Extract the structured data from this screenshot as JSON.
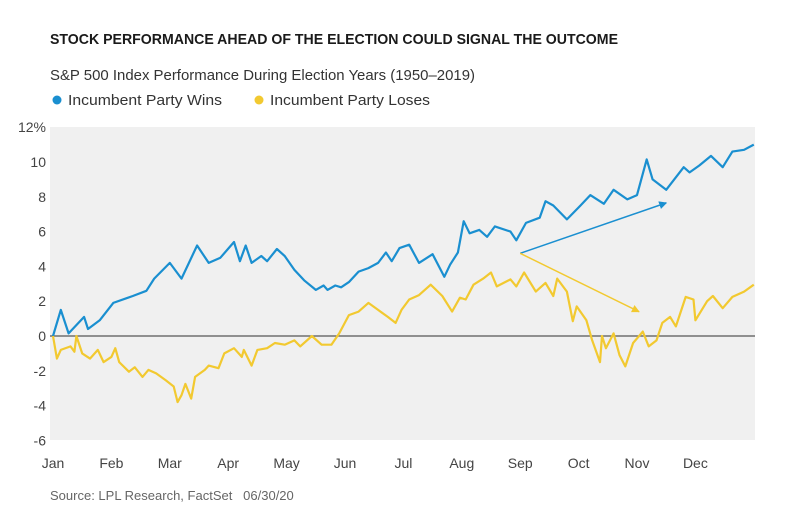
{
  "header": {
    "title": "STOCK PERFORMANCE AHEAD OF THE ELECTION COULD SIGNAL THE OUTCOME",
    "subtitle": "S&P 500 Index Performance During Election Years (1950–2019)"
  },
  "footer": {
    "source": "Source: LPL Research, FactSet   06/30/20"
  },
  "chart_data": {
    "type": "line",
    "title": "STOCK PERFORMANCE AHEAD OF THE ELECTION COULD SIGNAL THE OUTCOME",
    "subtitle": "S&P 500 Index Performance During Election Years (1950–2019)",
    "xlabel": "",
    "ylabel": "",
    "x_tick_labels": [
      "Jan",
      "Feb",
      "Mar",
      "Apr",
      "May",
      "Jun",
      "Jul",
      "Aug",
      "Sep",
      "Oct",
      "Nov",
      "Dec"
    ],
    "y_tick_labels": [
      "12%",
      "10",
      "8",
      "6",
      "4",
      "2",
      "0",
      "-2",
      "-4",
      "-6"
    ],
    "ylim": [
      -6,
      12
    ],
    "y_unit": "%",
    "grid": false,
    "zero_line": true,
    "legend_position": "top-left",
    "background": "#f0f0f0",
    "series": [
      {
        "name": "Incumbent Party Wins",
        "color": "#1a8fd0",
        "points": [
          [
            "Jan 1",
            0
          ],
          [
            "Jan 5",
            1.5
          ],
          [
            "Jan 9",
            0.15
          ],
          [
            "Jan 17",
            1.1
          ],
          [
            "Jan 19",
            0.4
          ],
          [
            "Jan 25",
            0.9
          ],
          [
            "Feb 2",
            1.9
          ],
          [
            "Feb 12",
            2.3
          ],
          [
            "Feb 19",
            2.6
          ],
          [
            "Feb 23",
            3.3
          ],
          [
            "Mar 1",
            4.2
          ],
          [
            "Mar 7",
            3.3
          ],
          [
            "Mar 15",
            5.2
          ],
          [
            "Mar 21",
            4.2
          ],
          [
            "Mar 27",
            4.5
          ],
          [
            "Apr 4",
            5.4
          ],
          [
            "Apr 7",
            4.3
          ],
          [
            "Apr 10",
            5.2
          ],
          [
            "Apr 13",
            4.2
          ],
          [
            "Apr 18",
            4.6
          ],
          [
            "Apr 21",
            4.3
          ],
          [
            "Apr 26",
            5.0
          ],
          [
            "Apr 30",
            4.6
          ],
          [
            "May 5",
            3.8
          ],
          [
            "May 10",
            3.2
          ],
          [
            "May 16",
            2.65
          ],
          [
            "May 20",
            2.9
          ],
          [
            "May 22",
            2.65
          ],
          [
            "May 26",
            2.9
          ],
          [
            "May 29",
            2.8
          ],
          [
            "Jun 3",
            3.1
          ],
          [
            "Jun 8",
            3.7
          ],
          [
            "Jun 13",
            3.9
          ],
          [
            "Jun 18",
            4.2
          ],
          [
            "Jun 22",
            4.8
          ],
          [
            "Jun 25",
            4.3
          ],
          [
            "Jun 29",
            5.05
          ],
          [
            "Jul 4",
            5.25
          ],
          [
            "Jul 9",
            4.2
          ],
          [
            "Jul 16",
            4.7
          ],
          [
            "Jul 22",
            3.4
          ],
          [
            "Jul 25",
            4.1
          ],
          [
            "Jul 29",
            4.8
          ],
          [
            "Aug 2",
            6.6
          ],
          [
            "Aug 5",
            5.9
          ],
          [
            "Aug 10",
            6.1
          ],
          [
            "Aug 14",
            5.7
          ],
          [
            "Aug 18",
            6.3
          ],
          [
            "Aug 26",
            6.0
          ],
          [
            "Aug 29",
            5.5
          ],
          [
            "Sep 4",
            6.5
          ],
          [
            "Sep 11",
            6.8
          ],
          [
            "Sep 14",
            7.75
          ],
          [
            "Sep 18",
            7.5
          ],
          [
            "Sep 25",
            6.7
          ],
          [
            "Oct 2",
            7.5
          ],
          [
            "Oct 7",
            8.1
          ],
          [
            "Oct 14",
            7.6
          ],
          [
            "Oct 19",
            8.4
          ],
          [
            "Oct 26",
            7.85
          ],
          [
            "Oct 31",
            8.1
          ],
          [
            "Nov 6",
            10.15
          ],
          [
            "Nov 9",
            9.0
          ],
          [
            "Nov 16",
            8.4
          ],
          [
            "Nov 25",
            9.7
          ],
          [
            "Nov 28",
            9.4
          ],
          [
            "Dec 3",
            9.8
          ],
          [
            "Dec 9",
            10.35
          ],
          [
            "Dec 15",
            9.7
          ],
          [
            "Dec 20",
            10.6
          ],
          [
            "Dec 26",
            10.7
          ],
          [
            "Dec 31",
            11.0
          ]
        ]
      },
      {
        "name": "Incumbent Party Loses",
        "color": "#f2c930",
        "points": [
          [
            "Jan 1",
            0
          ],
          [
            "Jan 3",
            -1.3
          ],
          [
            "Jan 5",
            -0.8
          ],
          [
            "Jan 10",
            -0.6
          ],
          [
            "Jan 12",
            -0.9
          ],
          [
            "Jan 13",
            0
          ],
          [
            "Jan 16",
            -1.0
          ],
          [
            "Jan 20",
            -1.3
          ],
          [
            "Jan 24",
            -0.8
          ],
          [
            "Jan 27",
            -1.5
          ],
          [
            "Feb 1",
            -1.2
          ],
          [
            "Feb 3",
            -0.7
          ],
          [
            "Feb 5",
            -1.5
          ],
          [
            "Feb 10",
            -2.05
          ],
          [
            "Feb 13",
            -1.8
          ],
          [
            "Feb 17",
            -2.35
          ],
          [
            "Feb 20",
            -1.95
          ],
          [
            "Feb 24",
            -2.15
          ],
          [
            "Feb 29",
            -2.55
          ],
          [
            "Mar 3",
            -2.9
          ],
          [
            "Mar 5",
            -3.8
          ],
          [
            "Mar 7",
            -3.4
          ],
          [
            "Mar 9",
            -2.75
          ],
          [
            "Mar 12",
            -3.6
          ],
          [
            "Mar 14",
            -2.35
          ],
          [
            "Mar 19",
            -1.95
          ],
          [
            "Mar 21",
            -1.7
          ],
          [
            "Mar 26",
            -1.85
          ],
          [
            "Mar 29",
            -1.0
          ],
          [
            "Apr 4",
            -0.7
          ],
          [
            "Apr 8",
            -1.2
          ],
          [
            "Apr 9",
            -0.8
          ],
          [
            "Apr 13",
            -1.7
          ],
          [
            "Apr 16",
            -0.8
          ],
          [
            "Apr 21",
            -0.7
          ],
          [
            "Apr 25",
            -0.4
          ],
          [
            "Apr 30",
            -0.5
          ],
          [
            "May 5",
            -0.25
          ],
          [
            "May 8",
            -0.6
          ],
          [
            "May 14",
            0
          ],
          [
            "May 19",
            -0.5
          ],
          [
            "May 24",
            -0.5
          ],
          [
            "May 28",
            0.15
          ],
          [
            "Jun 3",
            1.2
          ],
          [
            "Jun 8",
            1.4
          ],
          [
            "Jun 13",
            1.9
          ],
          [
            "Jun 18",
            1.5
          ],
          [
            "Jun 23",
            1.1
          ],
          [
            "Jun 27",
            0.75
          ],
          [
            "Jun 30",
            1.5
          ],
          [
            "Jul 4",
            2.1
          ],
          [
            "Jul 9",
            2.35
          ],
          [
            "Jul 15",
            2.95
          ],
          [
            "Jul 21",
            2.3
          ],
          [
            "Jul 26",
            1.4
          ],
          [
            "Jul 30",
            2.2
          ],
          [
            "Aug 3",
            2.1
          ],
          [
            "Aug 7",
            2.95
          ],
          [
            "Aug 12",
            3.3
          ],
          [
            "Aug 16",
            3.65
          ],
          [
            "Aug 19",
            2.85
          ],
          [
            "Aug 26",
            3.25
          ],
          [
            "Aug 29",
            2.85
          ],
          [
            "Sep 3",
            3.65
          ],
          [
            "Sep 9",
            2.55
          ],
          [
            "Sep 14",
            3.05
          ],
          [
            "Sep 18",
            2.3
          ],
          [
            "Sep 20",
            3.3
          ],
          [
            "Sep 25",
            2.55
          ],
          [
            "Sep 28",
            0.85
          ],
          [
            "Sep 30",
            1.7
          ],
          [
            "Oct 5",
            0.9
          ],
          [
            "Oct 8",
            -0.25
          ],
          [
            "Oct 12",
            -1.5
          ],
          [
            "Oct 13",
            0
          ],
          [
            "Oct 15",
            -0.7
          ],
          [
            "Oct 19",
            0.15
          ],
          [
            "Oct 22",
            -1.1
          ],
          [
            "Oct 25",
            -1.75
          ],
          [
            "Oct 29",
            -0.4
          ],
          [
            "Nov 4",
            0.25
          ],
          [
            "Nov 7",
            -0.6
          ],
          [
            "Nov 11",
            -0.25
          ],
          [
            "Nov 14",
            0.75
          ],
          [
            "Nov 18",
            1.1
          ],
          [
            "Nov 21",
            0.55
          ],
          [
            "Nov 26",
            2.25
          ],
          [
            "Nov 30",
            2.1
          ],
          [
            "Dec 1",
            0.9
          ],
          [
            "Dec 7",
            2.0
          ],
          [
            "Dec 10",
            2.3
          ],
          [
            "Dec 15",
            1.6
          ],
          [
            "Dec 20",
            2.25
          ],
          [
            "Dec 26",
            2.55
          ],
          [
            "Dec 31",
            2.95
          ]
        ]
      }
    ],
    "annotations": [
      {
        "type": "arrow",
        "color": "#1a8fd0",
        "from": [
          "Sep 1",
          4.75
        ],
        "to": [
          "Nov 16",
          7.65
        ]
      },
      {
        "type": "arrow",
        "color": "#f2c930",
        "from": [
          "Sep 1",
          4.75
        ],
        "to": [
          "Nov 2",
          1.4
        ]
      }
    ]
  }
}
